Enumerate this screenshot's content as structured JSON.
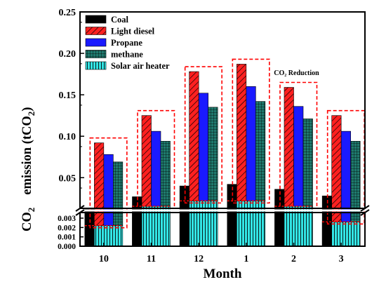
{
  "chart_data": {
    "type": "bar",
    "categories": [
      "10",
      "11",
      "12",
      "1",
      "2",
      "3"
    ],
    "xlabel": "Month",
    "ylabel_prefix": "CO",
    "ylabel_prefix_sub": "2",
    "ylabel_main": "emission (tCO",
    "ylabel_main_sub": "2",
    "ylabel_main_suffix": ")",
    "y_axis_break": true,
    "upper_axis": {
      "ylim": [
        0.013,
        0.25
      ],
      "ticks": [
        "0.05",
        "0.10",
        "0.15",
        "0.20",
        "0.25"
      ],
      "tick_values": [
        0.05,
        0.1,
        0.15,
        0.2,
        0.25
      ]
    },
    "lower_axis": {
      "ylim": [
        0,
        0.0036
      ],
      "ticks": [
        "0.000",
        "0.001",
        "0.002",
        "0.003"
      ],
      "tick_values": [
        0,
        0.001,
        0.002,
        0.003
      ]
    },
    "series": [
      {
        "name": "Coal",
        "color": "#000000",
        "pattern": "solid",
        "values": [
          0.0036,
          0.027,
          0.04,
          0.042,
          0.036,
          0.028
        ]
      },
      {
        "name": "Light diesel",
        "color": "#ff2020",
        "pattern": "diagonal-hatch",
        "values": [
          0.092,
          0.125,
          0.178,
          0.187,
          0.159,
          0.125
        ]
      },
      {
        "name": "Propane",
        "color": "#1a1aff",
        "pattern": "solid",
        "values": [
          0.078,
          0.106,
          0.152,
          0.16,
          0.136,
          0.106
        ]
      },
      {
        "name": "methane",
        "color": "#1f7a6e",
        "pattern": "grid",
        "values": [
          0.069,
          0.094,
          0.135,
          0.142,
          0.121,
          0.094
        ]
      },
      {
        "name": "Solar air heater",
        "color": "#33e6e6",
        "pattern": "vertical-hatch",
        "values": [
          0.0022,
          0.0155,
          0.022,
          0.022,
          0.0155,
          0.0026
        ]
      }
    ],
    "annotations": [
      {
        "text": "CO₂ Reduction",
        "near_category": "2"
      }
    ],
    "legend": {
      "placement": "top-left"
    }
  }
}
